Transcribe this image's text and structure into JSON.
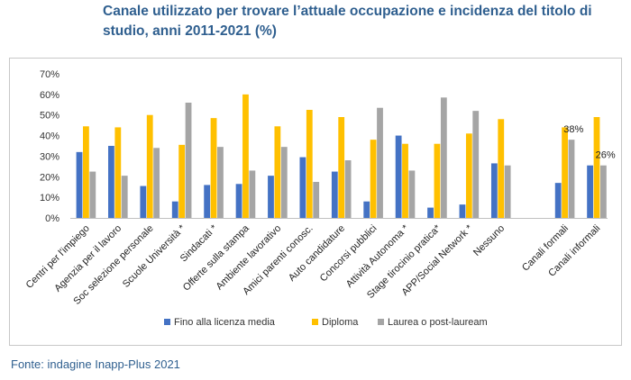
{
  "title": "Canale utilizzato per trovare l’attuale occupazione e incidenza del titolo di studio, anni 2011-2021 (%)",
  "source": "Fonte: indagine Inapp-Plus 2021",
  "colors": {
    "series1": "#4472C4",
    "series2": "#FFC000",
    "series3": "#A5A5A5"
  },
  "chart_data": {
    "type": "bar",
    "title": "Canale utilizzato per trovare l’attuale occupazione e incidenza del titolo di studio, anni 2011-2021 (%)",
    "categories": [
      "Centri per l'impiego",
      "Agenzia per il lavoro",
      "Soc selezione personale",
      "Scuole Università *",
      "Sindacati *",
      "Offerte sulla stampa",
      "Ambiente lavorativo",
      "Amici parenti conosc.",
      "Auto candidature",
      "Concorsi pubblici",
      "Attività Autonoma *",
      "Stage tirocinio pratica*",
      "APP/Social Network *",
      "Nessuno",
      "",
      "Canali formali",
      "Canali informali"
    ],
    "series": [
      {
        "name": "Fino alla licenza media",
        "values": [
          32,
          35,
          15.5,
          8,
          16,
          16.5,
          20.5,
          29.5,
          22.5,
          8,
          40,
          5,
          6.5,
          26.5,
          null,
          17,
          25.5
        ]
      },
      {
        "name": "Diploma",
        "values": [
          44.5,
          44,
          50,
          35.5,
          48.5,
          60,
          44.5,
          52.5,
          49,
          38,
          36,
          36,
          41,
          48,
          null,
          44,
          49
        ]
      },
      {
        "name": "Laurea o post-lauream",
        "values": [
          22.5,
          20.5,
          34,
          56,
          34.5,
          23,
          34.5,
          17.5,
          28,
          53.5,
          23,
          58.5,
          52,
          25.5,
          null,
          38,
          25.5
        ]
      }
    ],
    "data_labels": [
      {
        "category": "Canali formali",
        "series": "Laurea o post-lauream",
        "text": "38%"
      },
      {
        "category": "Canali informali",
        "series": "Laurea o post-lauream",
        "text": "26%"
      }
    ],
    "yticks": [
      "0%",
      "10%",
      "20%",
      "30%",
      "40%",
      "50%",
      "60%",
      "70%"
    ],
    "ylim": [
      0,
      70
    ],
    "xlabel": "",
    "ylabel": "",
    "grid": false,
    "legend": "bottom"
  }
}
